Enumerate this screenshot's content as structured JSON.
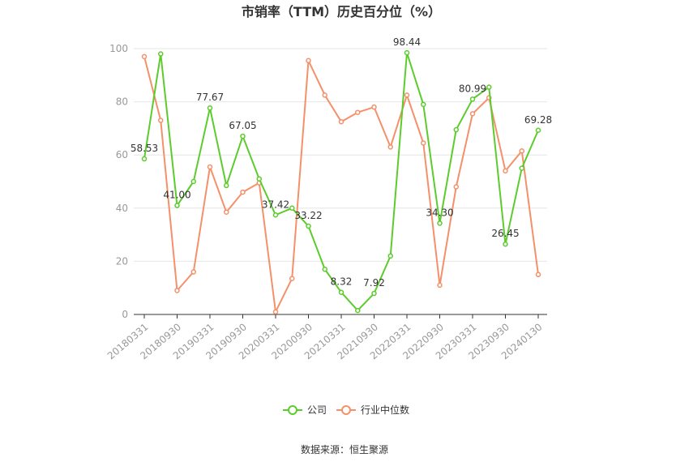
{
  "chart_data": {
    "type": "line",
    "title": "市销率（TTM）历史百分位（%）",
    "source": "数据来源：恒生聚源",
    "x": [
      "20180331",
      "20180630",
      "20180930",
      "20181231",
      "20190331",
      "20190630",
      "20190930",
      "20191231",
      "20200331",
      "20200630",
      "20200930",
      "20201231",
      "20210331",
      "20210630",
      "20210930",
      "20211231",
      "20220331",
      "20220630",
      "20220930",
      "20221231",
      "20230331",
      "20230630",
      "20230930",
      "20231231",
      "20240130"
    ],
    "x_tick_labels": [
      "20180331",
      "20180930",
      "20190331",
      "20190930",
      "20200331",
      "20200930",
      "20210331",
      "20210930",
      "20220331",
      "20220930",
      "20230331",
      "20230930",
      "20240130"
    ],
    "x_tick_indices": [
      0,
      2,
      4,
      6,
      8,
      10,
      12,
      14,
      16,
      18,
      20,
      22,
      24
    ],
    "y_ticks": [
      "0",
      "20",
      "40",
      "60",
      "80",
      "100"
    ],
    "ylim": [
      0,
      100
    ],
    "grid": true,
    "legend_position": "bottom",
    "series": [
      {
        "name": "公司",
        "color": "#5ccc2c",
        "values": [
          58.53,
          98.0,
          41.0,
          50.0,
          77.67,
          48.5,
          67.05,
          51.0,
          37.42,
          40.0,
          33.22,
          17.0,
          8.32,
          1.5,
          7.92,
          22.0,
          98.44,
          79.0,
          34.3,
          69.5,
          80.99,
          85.5,
          26.45,
          55.0,
          69.28
        ]
      },
      {
        "name": "行业中位数",
        "color": "#f4906a",
        "values": [
          97.0,
          73.0,
          9.0,
          16.0,
          55.5,
          38.5,
          46.0,
          49.5,
          1.0,
          13.5,
          95.5,
          82.5,
          72.5,
          76.0,
          78.0,
          63.0,
          82.5,
          64.5,
          11.0,
          48.0,
          75.5,
          81.5,
          54.0,
          61.5,
          15.0
        ]
      }
    ],
    "data_labels": [
      {
        "index": 0,
        "text": "58.53"
      },
      {
        "index": 2,
        "text": "41.00"
      },
      {
        "index": 4,
        "text": "77.67"
      },
      {
        "index": 6,
        "text": "67.05"
      },
      {
        "index": 8,
        "text": "37.42"
      },
      {
        "index": 10,
        "text": "33.22"
      },
      {
        "index": 12,
        "text": "8.32"
      },
      {
        "index": 14,
        "text": "7.92"
      },
      {
        "index": 16,
        "text": "98.44"
      },
      {
        "index": 18,
        "text": "34.30"
      },
      {
        "index": 20,
        "text": "80.99"
      },
      {
        "index": 22,
        "text": "26.45"
      },
      {
        "index": 24,
        "text": "69.28"
      }
    ]
  }
}
